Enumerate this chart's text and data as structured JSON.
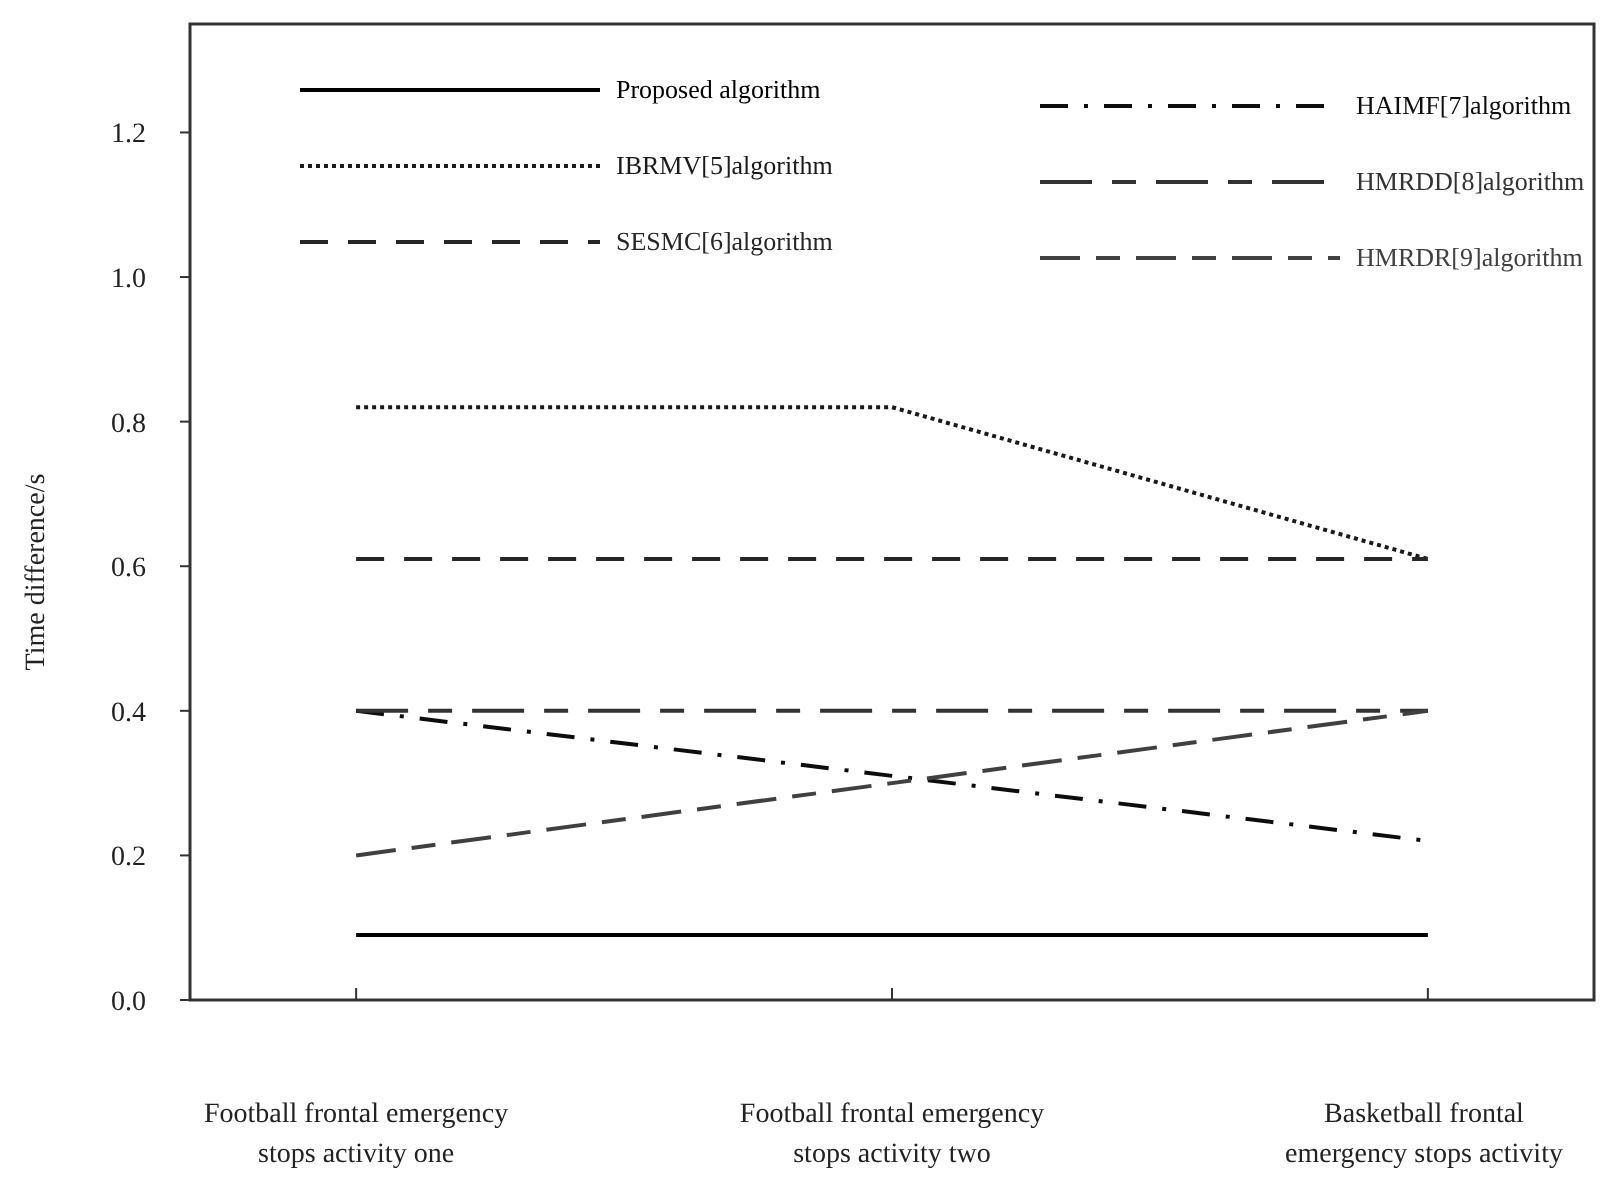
{
  "chart_data": {
    "type": "line",
    "ylabel": "Time difference/s",
    "categories": [
      "Football frontal emergency stops activity one",
      "Football frontal emergency stops activity two",
      "Basketball frontal emergency stops activity"
    ],
    "ylim": [
      0,
      1.35
    ],
    "yticks": [
      {
        "value": 0,
        "label": "0.0"
      },
      0.2,
      0.4,
      0.6,
      0.8,
      {
        "value": 1,
        "label": "1.0"
      },
      1.2
    ],
    "grid": false,
    "legend": "top",
    "marker": "none",
    "series": [
      {
        "name": "Proposed algorithm",
        "color": "#000000",
        "line_style": "solid",
        "values": [
          0.09,
          0.09,
          0.09
        ]
      },
      {
        "name": "IBRMV[5]algorithm",
        "color": "#1a1a1a",
        "line_style": "dotted",
        "values": [
          0.82,
          0.82,
          0.61
        ]
      },
      {
        "name": "SESMC[6]algorithm",
        "color": "#262626",
        "line_style": "dashed",
        "values": [
          0.61,
          0.61,
          0.61
        ]
      },
      {
        "name": "HAIMF[7]algorithm",
        "color": "#0d0d0d",
        "line_style": "dashdot",
        "values": [
          0.4,
          0.31,
          0.22
        ]
      },
      {
        "name": "HMRDD[8]algorithm",
        "color": "#333333",
        "line_style": "longdash",
        "values": [
          0.4,
          0.4,
          0.4
        ]
      },
      {
        "name": "HMRDR[9]algorithm",
        "color": "#404040",
        "line_style": "longshortdash",
        "values": [
          0.2,
          0.3,
          0.4
        ]
      }
    ]
  }
}
